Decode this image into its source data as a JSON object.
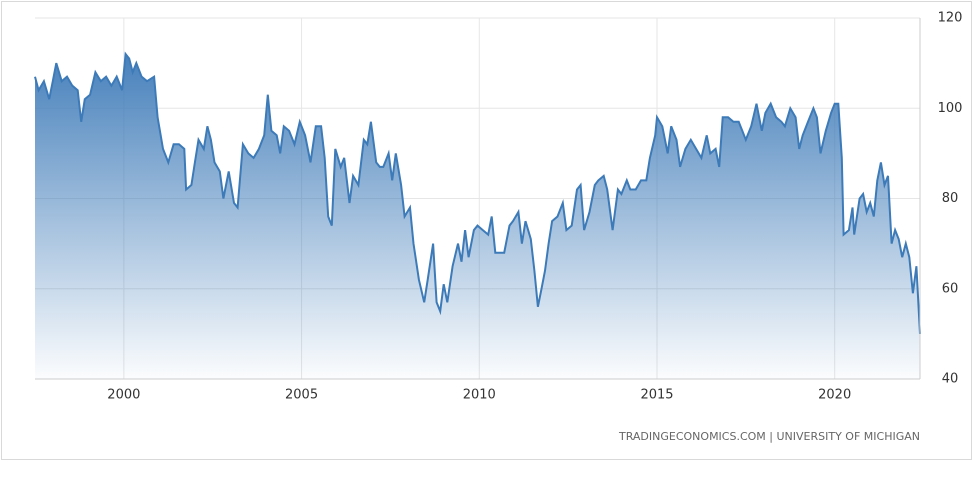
{
  "chart_data": {
    "type": "area",
    "source": "TRADINGECONOMICS.COM | UNIVERSITY OF MICHIGAN",
    "color": "#3d7ab8",
    "grid": true,
    "xlim": [
      1997.5,
      2022.4
    ],
    "xticks": [
      2000,
      2005,
      2010,
      2015,
      2020
    ],
    "ylim": [
      40,
      120
    ],
    "yticks": [
      40,
      60,
      80,
      100,
      120
    ],
    "x": [
      1997.5,
      1997.6,
      1997.75,
      1997.9,
      1998.0,
      1998.1,
      1998.25,
      1998.4,
      1998.55,
      1998.7,
      1998.8,
      1998.9,
      1999.05,
      1999.2,
      1999.35,
      1999.5,
      1999.65,
      1999.8,
      1999.95,
      2000.05,
      2000.15,
      2000.25,
      2000.35,
      2000.5,
      2000.65,
      2000.85,
      2000.95,
      2001.1,
      2001.25,
      2001.4,
      2001.55,
      2001.7,
      2001.75,
      2001.9,
      2002.0,
      2002.1,
      2002.25,
      2002.35,
      2002.45,
      2002.55,
      2002.7,
      2002.8,
      2002.95,
      2003.1,
      2003.2,
      2003.35,
      2003.5,
      2003.65,
      2003.8,
      2003.95,
      2004.05,
      2004.15,
      2004.3,
      2004.4,
      2004.5,
      2004.65,
      2004.8,
      2004.95,
      2005.1,
      2005.25,
      2005.4,
      2005.55,
      2005.65,
      2005.75,
      2005.85,
      2005.95,
      2006.1,
      2006.2,
      2006.35,
      2006.45,
      2006.6,
      2006.75,
      2006.85,
      2006.95,
      2007.1,
      2007.2,
      2007.3,
      2007.45,
      2007.55,
      2007.65,
      2007.8,
      2007.9,
      2008.05,
      2008.15,
      2008.3,
      2008.45,
      2008.55,
      2008.7,
      2008.8,
      2008.9,
      2009.0,
      2009.1,
      2009.25,
      2009.4,
      2009.5,
      2009.6,
      2009.7,
      2009.85,
      2009.95,
      2010.1,
      2010.25,
      2010.35,
      2010.45,
      2010.6,
      2010.7,
      2010.85,
      2010.95,
      2011.1,
      2011.2,
      2011.3,
      2011.45,
      2011.55,
      2011.65,
      2011.75,
      2011.85,
      2011.95,
      2012.05,
      2012.2,
      2012.35,
      2012.45,
      2012.6,
      2012.75,
      2012.85,
      2012.95,
      2013.1,
      2013.25,
      2013.35,
      2013.5,
      2013.6,
      2013.75,
      2013.9,
      2014.0,
      2014.15,
      2014.25,
      2014.4,
      2014.55,
      2014.7,
      2014.8,
      2014.95,
      2015.0,
      2015.15,
      2015.3,
      2015.4,
      2015.55,
      2015.65,
      2015.8,
      2015.95,
      2016.1,
      2016.25,
      2016.4,
      2016.5,
      2016.65,
      2016.75,
      2016.85,
      2017.0,
      2017.15,
      2017.3,
      2017.4,
      2017.5,
      2017.65,
      2017.8,
      2017.95,
      2018.05,
      2018.2,
      2018.35,
      2018.5,
      2018.6,
      2018.75,
      2018.9,
      2019.0,
      2019.1,
      2019.25,
      2019.4,
      2019.5,
      2019.6,
      2019.75,
      2019.9,
      2020.0,
      2020.1,
      2020.2,
      2020.25,
      2020.4,
      2020.5,
      2020.55,
      2020.7,
      2020.8,
      2020.9,
      2021.0,
      2021.1,
      2021.2,
      2021.3,
      2021.4,
      2021.5,
      2021.6,
      2021.7,
      2021.8,
      2021.9,
      2022.0,
      2022.1,
      2022.2,
      2022.3,
      2022.4
    ],
    "values": [
      107,
      104,
      106,
      102,
      106,
      110,
      106,
      107,
      105,
      104,
      97,
      102,
      103,
      108,
      106,
      107,
      105,
      107,
      104,
      112,
      111,
      108,
      110,
      107,
      106,
      107,
      98,
      91,
      88,
      92,
      92,
      91,
      82,
      83,
      88,
      93,
      91,
      96,
      93,
      88,
      86,
      80,
      86,
      79,
      78,
      92,
      90,
      89,
      91,
      94,
      103,
      95,
      94,
      90,
      96,
      95,
      92,
      97,
      94,
      88,
      96,
      96,
      89,
      76,
      74,
      91,
      87,
      89,
      79,
      85,
      83,
      93,
      92,
      97,
      88,
      87,
      87,
      90,
      84,
      90,
      83,
      76,
      78,
      70,
      62,
      57,
      62,
      70,
      57,
      55,
      61,
      57,
      65,
      70,
      66,
      73,
      67,
      73,
      74,
      73,
      72,
      76,
      68,
      68,
      68,
      74,
      75,
      77,
      70,
      75,
      71,
      64,
      56,
      60,
      64,
      70,
      75,
      76,
      79,
      73,
      74,
      82,
      83,
      73,
      77,
      83,
      84,
      85,
      82,
      73,
      82,
      81,
      84,
      82,
      82,
      84,
      84,
      89,
      94,
      98,
      96,
      90,
      96,
      93,
      87,
      91,
      93,
      91,
      89,
      94,
      90,
      91,
      87,
      98,
      98,
      97,
      97,
      95,
      93,
      96,
      101,
      95,
      99,
      101,
      98,
      97,
      96,
      100,
      98,
      91,
      94,
      97,
      100,
      98,
      90,
      95,
      99,
      101,
      101,
      89,
      72,
      73,
      78,
      72,
      80,
      81,
      77,
      79,
      76,
      84,
      88,
      83,
      85,
      70,
      73,
      71,
      67,
      70,
      67,
      59,
      65,
      50
    ]
  }
}
